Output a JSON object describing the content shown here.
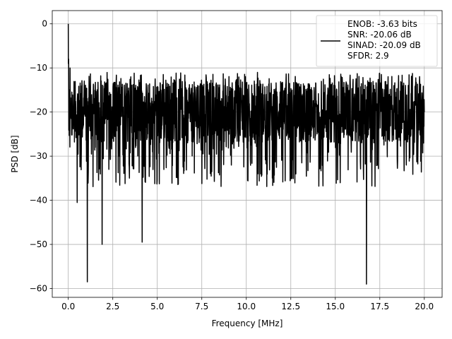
{
  "chart_data": {
    "type": "line",
    "title": "",
    "xlabel": "Frequency [MHz]",
    "ylabel": "PSD [dB]",
    "xlim": [
      -0.9,
      21.0
    ],
    "ylim": [
      -62,
      3
    ],
    "x_ticks": [
      "0.0",
      "2.5",
      "5.0",
      "7.5",
      "10.0",
      "12.5",
      "15.0",
      "17.5",
      "20.0"
    ],
    "y_ticks": [
      "0",
      "−10",
      "−20",
      "−30",
      "−40",
      "−50",
      "−60"
    ],
    "grid": true,
    "legend_position": "top-right",
    "legend": [
      "ENOB: -3.63 bits",
      "SNR: -20.06 dB",
      "SINAD: -20.09 dB",
      "SFDR: 2.9"
    ],
    "series": [
      {
        "color": "#000000",
        "description": "noise-like PSD spectrum spanning 0-20 MHz, floor mostly between -10 and -35 dB",
        "x": [
          0.0,
          0.02,
          0.05,
          0.1,
          0.5,
          1.07,
          1.9,
          4.15,
          16.75,
          20.0
        ],
        "values": [
          0.0,
          -8.0,
          -15.0,
          -10.0,
          -40.5,
          -58.5,
          -50.0,
          -49.5,
          -59.0,
          -20.0
        ]
      }
    ]
  }
}
